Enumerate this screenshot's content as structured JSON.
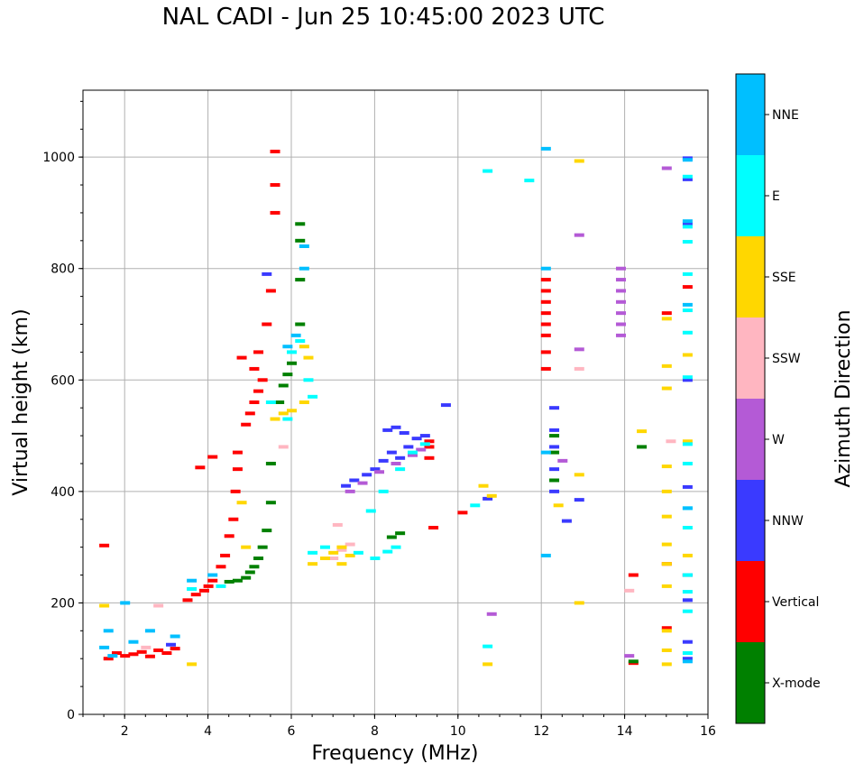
{
  "chart_data": {
    "type": "scatter",
    "title": "NAL CADI - Jun 25 10:45:00 2023 UTC",
    "xlabel": "Frequency (MHz)",
    "ylabel": "Virtual height (km)",
    "xlim": [
      1,
      16
    ],
    "ylim": [
      0,
      1120
    ],
    "xticks": [
      2,
      4,
      6,
      8,
      10,
      12,
      14,
      16
    ],
    "yticks": [
      0,
      200,
      400,
      600,
      800,
      1000
    ],
    "grid": true,
    "colorbar": {
      "label": "Azimuth Direction",
      "categories": [
        {
          "name": "X-mode",
          "color": "#008000"
        },
        {
          "name": "Vertical",
          "color": "#ff0000"
        },
        {
          "name": "NNW",
          "color": "#3a3aff"
        },
        {
          "name": "W",
          "color": "#b45ad6"
        },
        {
          "name": "SSW",
          "color": "#ffb6c1"
        },
        {
          "name": "SSE",
          "color": "#ffd700"
        },
        {
          "name": "E",
          "color": "#00ffff"
        },
        {
          "name": "NNE",
          "color": "#00bfff"
        }
      ]
    },
    "series": [
      {
        "name": "Vertical",
        "points": [
          [
            1.5,
            303
          ],
          [
            1.6,
            100
          ],
          [
            1.8,
            110
          ],
          [
            2.0,
            105
          ],
          [
            2.2,
            108
          ],
          [
            2.4,
            112
          ],
          [
            2.6,
            104
          ],
          [
            2.8,
            115
          ],
          [
            3.0,
            110
          ],
          [
            3.2,
            118
          ],
          [
            3.5,
            205
          ],
          [
            3.7,
            215
          ],
          [
            3.9,
            222
          ],
          [
            4.0,
            230
          ],
          [
            4.1,
            240
          ],
          [
            4.3,
            265
          ],
          [
            4.4,
            285
          ],
          [
            4.5,
            320
          ],
          [
            4.6,
            350
          ],
          [
            4.65,
            400
          ],
          [
            4.7,
            440
          ],
          [
            4.7,
            470
          ],
          [
            3.8,
            443
          ],
          [
            4.1,
            462
          ],
          [
            4.9,
            520
          ],
          [
            5.0,
            540
          ],
          [
            5.1,
            560
          ],
          [
            5.2,
            580
          ],
          [
            5.3,
            600
          ],
          [
            5.1,
            620
          ],
          [
            4.8,
            640
          ],
          [
            5.2,
            650
          ],
          [
            5.4,
            700
          ],
          [
            5.5,
            760
          ],
          [
            5.6,
            900
          ],
          [
            5.6,
            950
          ],
          [
            5.6,
            1010
          ],
          [
            12.1,
            620
          ],
          [
            12.1,
            650
          ],
          [
            12.1,
            680
          ],
          [
            12.1,
            700
          ],
          [
            12.1,
            720
          ],
          [
            12.1,
            740
          ],
          [
            12.1,
            760
          ],
          [
            12.1,
            780
          ],
          [
            9.3,
            480
          ],
          [
            9.3,
            490
          ],
          [
            9.3,
            460
          ],
          [
            9.4,
            335
          ],
          [
            10.1,
            362
          ],
          [
            14.2,
            250
          ],
          [
            15.0,
            155
          ],
          [
            15.0,
            270
          ],
          [
            15.0,
            720
          ],
          [
            15.5,
            250
          ],
          [
            15.5,
            767
          ],
          [
            14.2,
            92
          ]
        ]
      },
      {
        "name": "X-mode",
        "points": [
          [
            4.5,
            238
          ],
          [
            4.7,
            240
          ],
          [
            4.9,
            245
          ],
          [
            5.0,
            255
          ],
          [
            5.1,
            265
          ],
          [
            5.2,
            280
          ],
          [
            5.3,
            300
          ],
          [
            5.4,
            330
          ],
          [
            5.5,
            380
          ],
          [
            5.5,
            450
          ],
          [
            5.7,
            560
          ],
          [
            5.8,
            590
          ],
          [
            5.9,
            610
          ],
          [
            6.0,
            630
          ],
          [
            6.2,
            700
          ],
          [
            6.2,
            780
          ],
          [
            6.2,
            850
          ],
          [
            6.2,
            880
          ],
          [
            12.3,
            420
          ],
          [
            12.3,
            470
          ],
          [
            12.3,
            500
          ],
          [
            8.4,
            318
          ],
          [
            8.6,
            325
          ],
          [
            14.4,
            480
          ],
          [
            14.2,
            95
          ]
        ]
      },
      {
        "name": "NNW",
        "points": [
          [
            7.3,
            410
          ],
          [
            7.5,
            420
          ],
          [
            7.8,
            430
          ],
          [
            8.0,
            440
          ],
          [
            8.2,
            455
          ],
          [
            8.4,
            470
          ],
          [
            8.6,
            460
          ],
          [
            8.8,
            480
          ],
          [
            9.0,
            495
          ],
          [
            9.2,
            500
          ],
          [
            8.3,
            510
          ],
          [
            8.5,
            515
          ],
          [
            8.7,
            505
          ],
          [
            9.7,
            555
          ],
          [
            12.3,
            400
          ],
          [
            12.3,
            440
          ],
          [
            12.3,
            480
          ],
          [
            12.3,
            510
          ],
          [
            12.3,
            550
          ],
          [
            12.6,
            347
          ],
          [
            12.9,
            385
          ],
          [
            15.5,
            100
          ],
          [
            15.5,
            130
          ],
          [
            15.5,
            205
          ],
          [
            15.5,
            250
          ],
          [
            15.5,
            408
          ],
          [
            15.5,
            600
          ],
          [
            15.5,
            880
          ],
          [
            15.5,
            960
          ],
          [
            15.5,
            998
          ],
          [
            5.4,
            790
          ],
          [
            10.7,
            387
          ],
          [
            3.1,
            125
          ]
        ]
      },
      {
        "name": "W",
        "points": [
          [
            7.4,
            400
          ],
          [
            7.7,
            415
          ],
          [
            8.1,
            435
          ],
          [
            8.5,
            450
          ],
          [
            8.9,
            465
          ],
          [
            9.1,
            475
          ],
          [
            13.9,
            680
          ],
          [
            13.9,
            700
          ],
          [
            13.9,
            720
          ],
          [
            13.9,
            740
          ],
          [
            13.9,
            760
          ],
          [
            13.9,
            780
          ],
          [
            13.9,
            800
          ],
          [
            12.9,
            860
          ],
          [
            12.9,
            655
          ],
          [
            12.5,
            455
          ],
          [
            14.1,
            105
          ],
          [
            15.0,
            980
          ],
          [
            10.8,
            180
          ]
        ]
      },
      {
        "name": "SSW",
        "points": [
          [
            7.0,
            280
          ],
          [
            7.2,
            295
          ],
          [
            7.4,
            305
          ],
          [
            7.1,
            340
          ],
          [
            5.8,
            480
          ],
          [
            2.8,
            195
          ],
          [
            2.5,
            120
          ],
          [
            14.1,
            222
          ],
          [
            12.9,
            620
          ],
          [
            15.1,
            490
          ]
        ]
      },
      {
        "name": "SSE",
        "points": [
          [
            6.5,
            270
          ],
          [
            6.8,
            280
          ],
          [
            7.0,
            290
          ],
          [
            7.2,
            300
          ],
          [
            7.4,
            285
          ],
          [
            7.2,
            270
          ],
          [
            5.6,
            530
          ],
          [
            5.8,
            540
          ],
          [
            6.0,
            545
          ],
          [
            6.3,
            560
          ],
          [
            6.4,
            640
          ],
          [
            6.3,
            660
          ],
          [
            4.8,
            380
          ],
          [
            4.9,
            300
          ],
          [
            3.6,
            90
          ],
          [
            12.9,
            200
          ],
          [
            12.9,
            430
          ],
          [
            12.9,
            993
          ],
          [
            12.4,
            375
          ],
          [
            14.4,
            508
          ],
          [
            15.0,
            90
          ],
          [
            15.0,
            115
          ],
          [
            15.0,
            150
          ],
          [
            15.0,
            230
          ],
          [
            15.0,
            270
          ],
          [
            15.0,
            305
          ],
          [
            15.0,
            355
          ],
          [
            15.0,
            400
          ],
          [
            15.0,
            445
          ],
          [
            15.0,
            585
          ],
          [
            15.0,
            625
          ],
          [
            15.0,
            710
          ],
          [
            15.5,
            285
          ],
          [
            15.5,
            490
          ],
          [
            15.5,
            645
          ],
          [
            10.7,
            90
          ],
          [
            10.6,
            410
          ],
          [
            10.8,
            392
          ],
          [
            1.5,
            195
          ]
        ]
      },
      {
        "name": "E",
        "points": [
          [
            6.5,
            290
          ],
          [
            6.8,
            300
          ],
          [
            7.6,
            290
          ],
          [
            8.0,
            280
          ],
          [
            8.3,
            292
          ],
          [
            8.5,
            300
          ],
          [
            8.2,
            400
          ],
          [
            8.6,
            440
          ],
          [
            8.9,
            470
          ],
          [
            9.2,
            485
          ],
          [
            6.2,
            670
          ],
          [
            6.0,
            650
          ],
          [
            6.4,
            600
          ],
          [
            6.5,
            570
          ],
          [
            5.9,
            530
          ],
          [
            5.5,
            560
          ],
          [
            4.3,
            230
          ],
          [
            3.6,
            225
          ],
          [
            15.5,
            110
          ],
          [
            15.5,
            185
          ],
          [
            15.5,
            220
          ],
          [
            15.5,
            250
          ],
          [
            15.5,
            335
          ],
          [
            15.5,
            370
          ],
          [
            15.5,
            450
          ],
          [
            15.5,
            485
          ],
          [
            15.5,
            605
          ],
          [
            15.5,
            685
          ],
          [
            15.5,
            725
          ],
          [
            15.5,
            790
          ],
          [
            15.5,
            848
          ],
          [
            15.5,
            875
          ],
          [
            15.5,
            965
          ],
          [
            10.4,
            375
          ],
          [
            10.7,
            122
          ],
          [
            11.7,
            958
          ],
          [
            10.7,
            975
          ],
          [
            7.9,
            365
          ]
        ]
      },
      {
        "name": "NNE",
        "points": [
          [
            1.5,
            120
          ],
          [
            1.6,
            150
          ],
          [
            1.7,
            105
          ],
          [
            2.0,
            200
          ],
          [
            2.2,
            130
          ],
          [
            2.6,
            150
          ],
          [
            3.2,
            140
          ],
          [
            3.6,
            240
          ],
          [
            4.1,
            250
          ],
          [
            6.3,
            840
          ],
          [
            6.3,
            800
          ],
          [
            6.1,
            680
          ],
          [
            5.9,
            660
          ],
          [
            12.1,
            1015
          ],
          [
            12.1,
            470
          ],
          [
            12.1,
            285
          ],
          [
            12.1,
            800
          ],
          [
            15.5,
            95
          ],
          [
            15.5,
            370
          ],
          [
            15.5,
            735
          ],
          [
            15.5,
            885
          ],
          [
            15.5,
            995
          ]
        ]
      }
    ]
  }
}
